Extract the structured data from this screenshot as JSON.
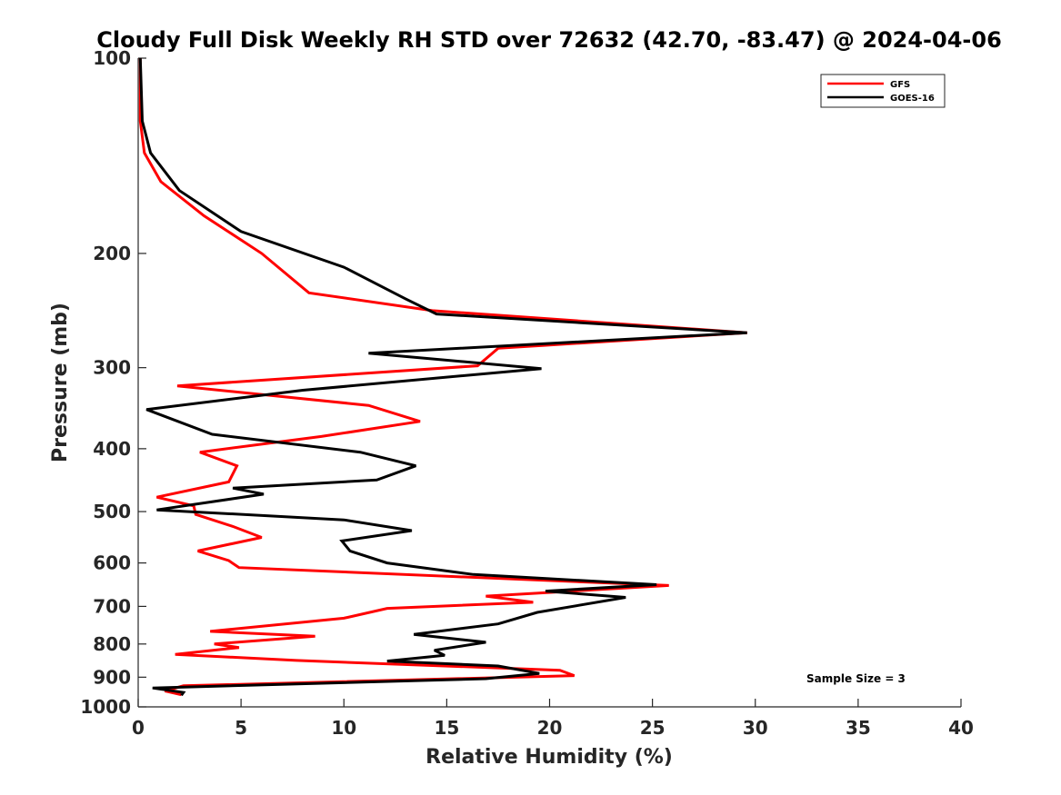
{
  "chart_data": {
    "type": "line",
    "title": "Cloudy Full Disk Weekly RH STD over 72632 (42.70, -83.47) @ 2024-04-06",
    "xlabel": "Relative Humidity (%)",
    "ylabel": "Pressure (mb)",
    "xlim": [
      0,
      40
    ],
    "ylim": [
      1000,
      100
    ],
    "yscale": "log",
    "y_reversed": true,
    "grid": false,
    "legend_position": "top-right",
    "x_ticks": [
      "0",
      "5",
      "10",
      "15",
      "20",
      "25",
      "30",
      "35",
      "40"
    ],
    "y_ticks": [
      "100",
      "200",
      "300",
      "400",
      "500",
      "600",
      "700",
      "800",
      "900",
      "1000"
    ],
    "annotation": "Sample Size = 3",
    "series": [
      {
        "name": "GFS",
        "color": "#ff0000",
        "x": [
          0.1,
          0.1,
          0.3,
          1.1,
          3.2,
          6.0,
          8.3,
          14.3,
          29.6,
          17.5,
          16.5,
          1.9,
          11.2,
          13.7,
          8.9,
          3.0,
          4.8,
          4.4,
          0.9,
          2.7,
          2.8,
          4.6,
          6.0,
          2.9,
          4.4,
          4.9,
          25.8,
          16.9,
          19.2,
          12.1,
          10.0,
          3.5,
          8.6,
          3.7,
          4.9,
          1.8,
          7.7,
          20.5,
          21.2,
          2.2,
          1.3,
          2.1
        ],
        "y": [
          100,
          125,
          140,
          155,
          175,
          200,
          230,
          245,
          265,
          280,
          298,
          320,
          343,
          363,
          383,
          405,
          425,
          450,
          475,
          490,
          505,
          527,
          548,
          575,
          595,
          610,
          650,
          675,
          690,
          705,
          730,
          765,
          778,
          800,
          810,
          830,
          848,
          878,
          895,
          928,
          945,
          958
        ]
      },
      {
        "name": "GOES-16",
        "color": "#000000",
        "x": [
          0.1,
          0.2,
          0.6,
          2.0,
          5.0,
          10.0,
          13.0,
          14.5,
          29.6,
          11.2,
          19.6,
          8.0,
          0.4,
          3.6,
          10.8,
          13.5,
          11.6,
          4.6,
          6.1,
          0.9,
          10.0,
          13.3,
          9.9,
          10.3,
          12.1,
          16.3,
          25.2,
          19.8,
          23.7,
          19.4,
          17.5,
          13.4,
          16.9,
          14.4,
          14.9,
          12.1,
          17.5,
          19.5,
          16.9,
          0.7,
          2.2,
          2.1
        ],
        "y": [
          100,
          125,
          140,
          160,
          185,
          210,
          235,
          248,
          265,
          285,
          301,
          325,
          348,
          380,
          405,
          425,
          447,
          460,
          470,
          497,
          515,
          535,
          555,
          575,
          600,
          625,
          648,
          663,
          678,
          715,
          745,
          773,
          795,
          818,
          833,
          850,
          865,
          888,
          905,
          935,
          950,
          960
        ]
      }
    ]
  }
}
